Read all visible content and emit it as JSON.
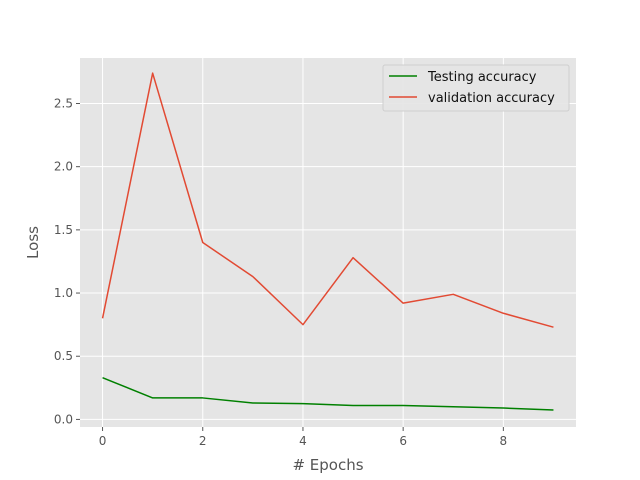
{
  "chart_data": {
    "type": "line",
    "title": "",
    "xlabel": "# Epochs",
    "ylabel": "Loss",
    "x": [
      0,
      1,
      2,
      3,
      4,
      5,
      6,
      7,
      8,
      9
    ],
    "xlim": [
      -0.45,
      9.45
    ],
    "ylim": [
      -0.06,
      2.86
    ],
    "xticks": [
      0,
      2,
      4,
      6,
      8
    ],
    "xtick_labels": [
      "0",
      "2",
      "4",
      "6",
      "8"
    ],
    "yticks": [
      0.0,
      0.5,
      1.0,
      1.5,
      2.0,
      2.5
    ],
    "ytick_labels": [
      "0.0",
      "0.5",
      "1.0",
      "1.5",
      "2.0",
      "2.5"
    ],
    "grid": true,
    "legend_position": "top-right",
    "series": [
      {
        "name": "Testing accuracy",
        "color": "#008000",
        "values": [
          0.33,
          0.17,
          0.17,
          0.13,
          0.125,
          0.11,
          0.11,
          0.1,
          0.09,
          0.075
        ]
      },
      {
        "name": "validation accuracy",
        "color": "#e24a33",
        "values": [
          0.8,
          2.74,
          1.4,
          1.13,
          0.75,
          1.28,
          0.92,
          0.99,
          0.84,
          0.73
        ]
      }
    ]
  }
}
